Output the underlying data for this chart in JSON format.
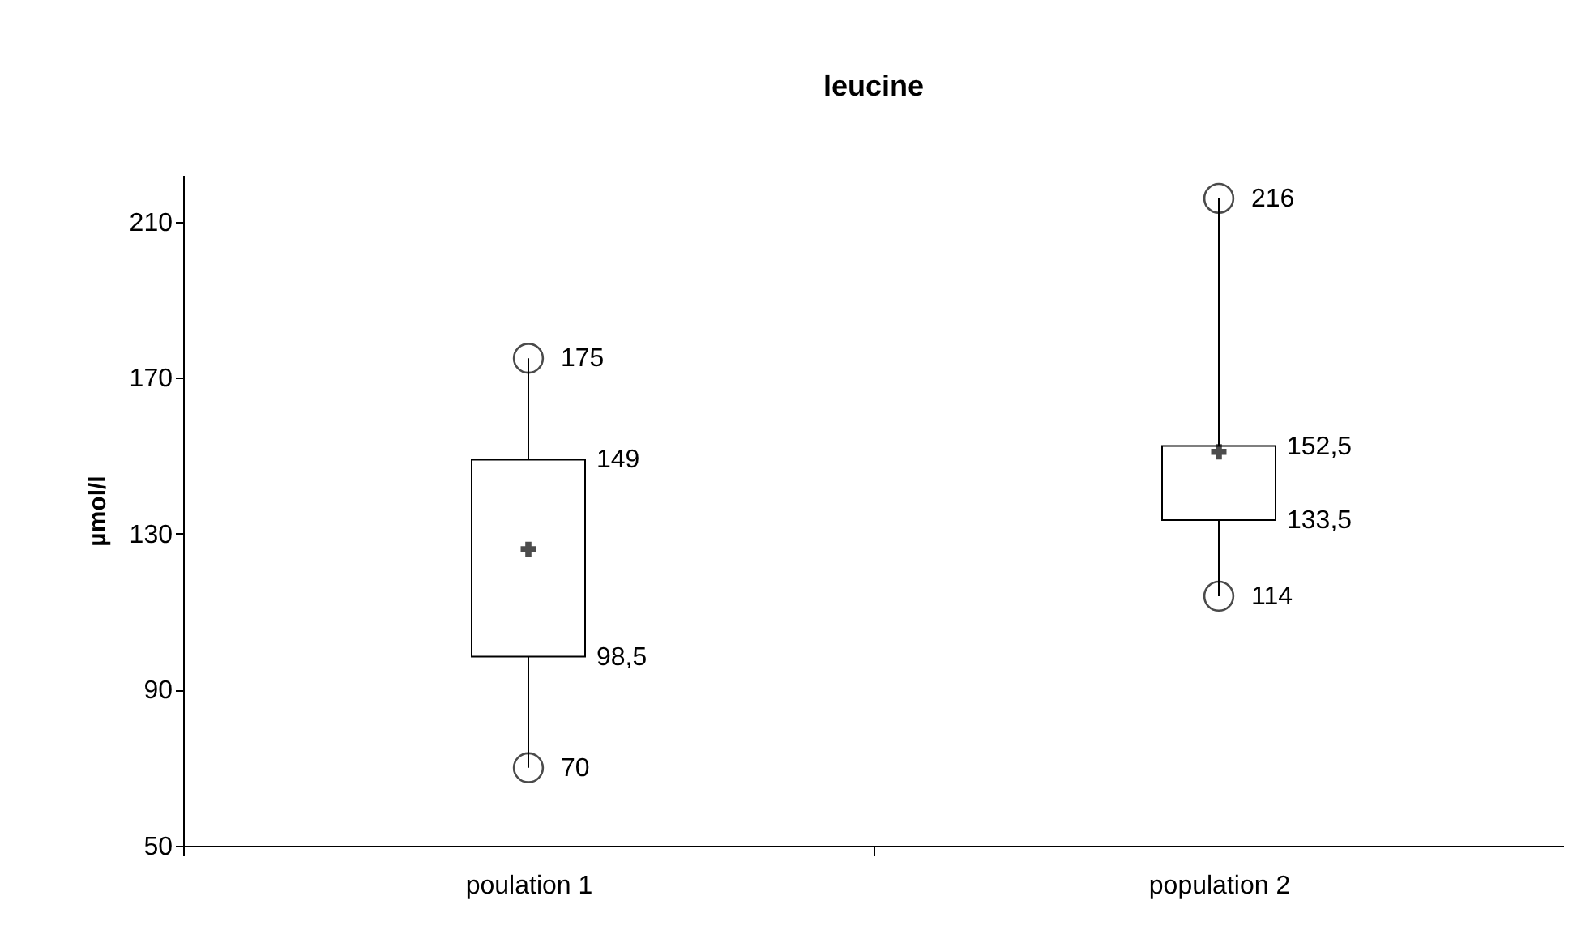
{
  "chart_data": {
    "type": "box",
    "title": "leucine",
    "ylabel": "µmol/l",
    "categories": [
      "poulation 1",
      "population 2"
    ],
    "boxes": [
      {
        "low": 70,
        "q1": 98.5,
        "median": 126,
        "q3": 149,
        "high": 175
      },
      {
        "low": 114,
        "q1": 133.5,
        "median": 151,
        "q3": 152.5,
        "high": 216
      }
    ],
    "ylim": [
      50,
      222
    ],
    "yticks": [
      50,
      90,
      130,
      170,
      210
    ],
    "marker": "circle",
    "grid": false,
    "annotations": [
      {
        "text": "175",
        "x": "poulation 1",
        "y": 175
      },
      {
        "text": "149",
        "x": "poulation 1",
        "y": 149
      },
      {
        "text": "98,5",
        "x": "poulation 1",
        "y": 98.5
      },
      {
        "text": "70",
        "x": "poulation 1",
        "y": 70
      },
      {
        "text": "216",
        "x": "population 2",
        "y": 216
      },
      {
        "text": "152,5",
        "x": "population 2",
        "y": 152.5
      },
      {
        "text": "133,5",
        "x": "population 2",
        "y": 133.5
      },
      {
        "text": "114",
        "x": "population 2",
        "y": 114
      }
    ]
  }
}
